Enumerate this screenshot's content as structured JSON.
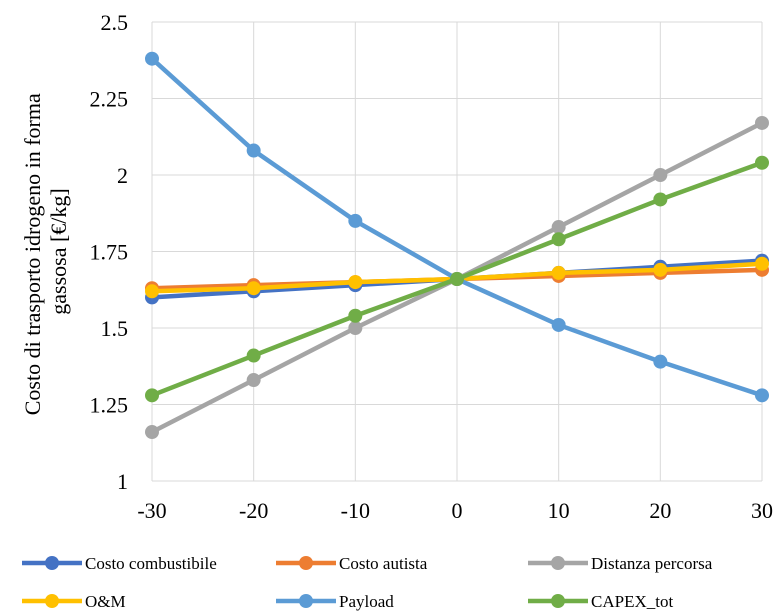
{
  "chart_data": {
    "type": "line",
    "title": "",
    "xlabel": "",
    "ylabel_lines": [
      "Costo di trasporto idrogeno in forma",
      "gassosa [€/kg]"
    ],
    "x": [
      -30,
      -20,
      -10,
      0,
      10,
      20,
      30
    ],
    "x_tick_labels": [
      "-30",
      "-20",
      "-10",
      "0",
      "10",
      "20",
      "30"
    ],
    "xlim": [
      -30,
      30
    ],
    "ylim": [
      1,
      2.5
    ],
    "y_ticks": [
      1,
      1.25,
      1.5,
      1.75,
      2,
      2.25,
      2.5
    ],
    "y_tick_labels": [
      "1",
      "1.25",
      "1.5",
      "1.75",
      "2",
      "2.25",
      "2.5"
    ],
    "grid": true,
    "legend_position": "bottom",
    "series": [
      {
        "name": "Costo combustibile",
        "color": "#4472C4",
        "values": [
          1.6,
          1.62,
          1.64,
          1.66,
          1.68,
          1.7,
          1.72
        ]
      },
      {
        "name": "Costo autista",
        "color": "#ED7D31",
        "values": [
          1.63,
          1.64,
          1.65,
          1.66,
          1.67,
          1.68,
          1.69
        ]
      },
      {
        "name": "Distanza percorsa",
        "color": "#A5A5A5",
        "values": [
          1.16,
          1.33,
          1.5,
          1.66,
          1.83,
          2.0,
          2.17
        ]
      },
      {
        "name": "O&M",
        "color": "#FFC000",
        "values": [
          1.62,
          1.63,
          1.65,
          1.66,
          1.68,
          1.69,
          1.71
        ]
      },
      {
        "name": "Payload",
        "color": "#5B9BD5",
        "values": [
          2.38,
          2.08,
          1.85,
          1.66,
          1.51,
          1.39,
          1.28
        ]
      },
      {
        "name": "CAPEX_tot",
        "color": "#70AD47",
        "values": [
          1.28,
          1.41,
          1.54,
          1.66,
          1.79,
          1.92,
          2.04
        ]
      }
    ]
  }
}
